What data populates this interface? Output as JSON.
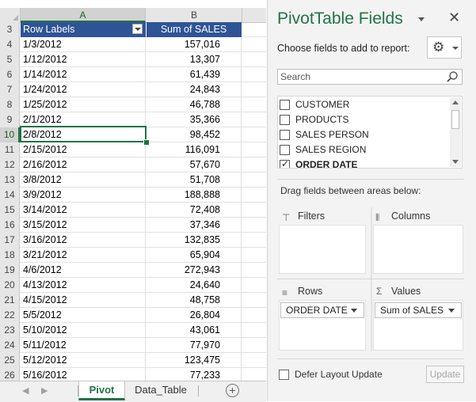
{
  "spreadsheet": {
    "columns": [
      "A",
      "B"
    ],
    "active_cell_row": "10",
    "header_row": {
      "row_num": "3",
      "a": "Row Labels",
      "b": "Sum of SALES"
    },
    "rows": [
      {
        "n": "4",
        "a": "1/3/2012",
        "b": "157,016"
      },
      {
        "n": "5",
        "a": "1/12/2012",
        "b": "13,307"
      },
      {
        "n": "6",
        "a": "1/14/2012",
        "b": "61,439"
      },
      {
        "n": "7",
        "a": "1/24/2012",
        "b": "24,843"
      },
      {
        "n": "8",
        "a": "1/25/2012",
        "b": "46,788"
      },
      {
        "n": "9",
        "a": "2/1/2012",
        "b": "35,366"
      },
      {
        "n": "10",
        "a": "2/8/2012",
        "b": "98,452"
      },
      {
        "n": "11",
        "a": "2/15/2012",
        "b": "116,091"
      },
      {
        "n": "12",
        "a": "2/16/2012",
        "b": "57,670"
      },
      {
        "n": "13",
        "a": "3/8/2012",
        "b": "51,708"
      },
      {
        "n": "14",
        "a": "3/9/2012",
        "b": "188,888"
      },
      {
        "n": "15",
        "a": "3/14/2012",
        "b": "72,408"
      },
      {
        "n": "16",
        "a": "3/15/2012",
        "b": "37,346"
      },
      {
        "n": "17",
        "a": "3/16/2012",
        "b": "132,835"
      },
      {
        "n": "18",
        "a": "3/21/2012",
        "b": "65,904"
      },
      {
        "n": "19",
        "a": "4/6/2012",
        "b": "272,943"
      },
      {
        "n": "20",
        "a": "4/13/2012",
        "b": "24,640"
      },
      {
        "n": "21",
        "a": "4/15/2012",
        "b": "48,758"
      },
      {
        "n": "22",
        "a": "5/5/2012",
        "b": "26,804"
      },
      {
        "n": "23",
        "a": "5/10/2012",
        "b": "43,061"
      },
      {
        "n": "24",
        "a": "5/11/2012",
        "b": "77,970"
      },
      {
        "n": "25",
        "a": "5/12/2012",
        "b": "123,475"
      },
      {
        "n": "26",
        "a": "5/16/2012",
        "b": "77,233"
      }
    ],
    "tabs": [
      {
        "label": "Pivot",
        "active": true
      },
      {
        "label": "Data_Table",
        "active": false
      }
    ],
    "add_sheet_glyph": "+"
  },
  "pivot_pane": {
    "title": "PivotTable Fields",
    "close_glyph": "✕",
    "choose_label": "Choose fields to add to report:",
    "gear_glyph": "⚙",
    "search_placeholder": "Search",
    "fields": [
      {
        "label": "CUSTOMER",
        "checked": false
      },
      {
        "label": "PRODUCTS",
        "checked": false
      },
      {
        "label": "SALES PERSON",
        "checked": false
      },
      {
        "label": "SALES REGION",
        "checked": false
      },
      {
        "label": "ORDER DATE",
        "checked": true
      }
    ],
    "drag_label": "Drag fields between areas below:",
    "areas": {
      "filters": {
        "title": "Filters",
        "icon": "⊤",
        "items": []
      },
      "columns": {
        "title": "Columns",
        "icon": "⦀",
        "items": []
      },
      "rows": {
        "title": "Rows",
        "icon": "≡",
        "items": [
          "ORDER DATE"
        ]
      },
      "values": {
        "title": "Values",
        "icon": "Σ",
        "items": [
          "Sum of SALES"
        ]
      }
    },
    "defer_label": "Defer Layout Update",
    "update_label": "Update"
  }
}
